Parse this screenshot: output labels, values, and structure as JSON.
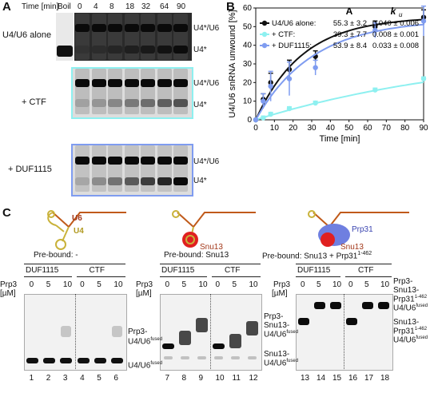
{
  "panel_a": {
    "label": "A",
    "time_label": "Time [min]",
    "lanes": [
      "Boil",
      "0",
      "4",
      "8",
      "18",
      "32",
      "64",
      "90"
    ],
    "rows": [
      {
        "name": "U4/U6 alone",
        "border": "#ffffff",
        "upper": "U4*/U6",
        "lower": "U4*"
      },
      {
        "name": "+ CTF",
        "border": "#8ef0f0",
        "upper": "U4*/U6",
        "lower": "U4*"
      },
      {
        "name": "+ DUF1115",
        "border": "#7f9cf0",
        "upper": "U4*/U6",
        "lower": "U4*"
      }
    ]
  },
  "panel_b": {
    "label": "B",
    "col_A": "A",
    "col_ku": "k",
    "col_ku_sub": "u",
    "legend": [
      {
        "name": "U4/U6 alone:",
        "A": "55.3 ± 3.2",
        "ku": "0.040 ± 0.006",
        "color": "#111111"
      },
      {
        "name": "+ CTF:",
        "A": "39.3 ± 7.7",
        "ku": "0.008 ± 0.001",
        "color": "#8ef0f0"
      },
      {
        "name": "+ DUF1115:",
        "A": "53.9 ± 8.4",
        "ku": "0.033 ± 0.008",
        "color": "#7f9cf0"
      }
    ]
  },
  "chart_data": {
    "type": "scatter",
    "xlabel": "Time [min]",
    "ylabel": "U4/U6 snRNA unwound [%]",
    "xlim": [
      0,
      90
    ],
    "ylim": [
      0,
      60
    ],
    "xticks": [
      0,
      10,
      20,
      30,
      40,
      50,
      60,
      70,
      80,
      90
    ],
    "yticks": [
      0,
      10,
      20,
      30,
      40,
      50,
      60
    ],
    "grid": false,
    "legend_position": "top",
    "series": [
      {
        "name": "U4/U6 alone",
        "color": "#111111",
        "A": 55.3,
        "ku": 0.04,
        "x": [
          0,
          4,
          8,
          18,
          32,
          64,
          90
        ],
        "y": [
          0,
          11,
          20,
          27,
          34,
          50,
          55
        ],
        "err": [
          0,
          3,
          5,
          5,
          3,
          3,
          4
        ]
      },
      {
        "name": "+ CTF",
        "color": "#8ef0f0",
        "A": 39.3,
        "ku": 0.008,
        "x": [
          0,
          4,
          8,
          18,
          32,
          64,
          90
        ],
        "y": [
          0,
          1,
          3,
          6,
          9,
          16,
          22
        ],
        "err": [
          0,
          1,
          1,
          1,
          1,
          1,
          1
        ]
      },
      {
        "name": "+ DUF1115",
        "color": "#7f9cf0",
        "A": 53.9,
        "ku": 0.033,
        "x": [
          0,
          4,
          8,
          18,
          32,
          64,
          90
        ],
        "y": [
          0,
          10,
          18,
          22,
          28,
          48,
          53
        ],
        "err": [
          0,
          4,
          8,
          9,
          4,
          4,
          8
        ]
      }
    ]
  },
  "panel_c": {
    "label": "C",
    "rna_labels": {
      "u6": "U6",
      "u4": "U4",
      "snu13": "Snu13",
      "prp31": "Prp31"
    },
    "gels": [
      {
        "prebound": "Pre-bound: -",
        "group1": "DUF1115",
        "group2": "CTF",
        "prp3": "Prp3",
        "prp3_unit": "[µM]",
        "conc": [
          "0",
          "5",
          "10",
          "0",
          "5",
          "10"
        ],
        "lanes": [
          "1",
          "2",
          "3",
          "4",
          "5",
          "6"
        ],
        "band_upper_a": "Prp3-",
        "band_upper_b": "U4/U6",
        "band_upper_sup": "fused",
        "band_lower": "U4/U6",
        "band_lower_sup": "fused"
      },
      {
        "prebound": "Pre-bound: Snu13",
        "group1": "DUF1115",
        "group2": "CTF",
        "prp3": "Prp3",
        "prp3_unit": "[µM]",
        "conc": [
          "0",
          "5",
          "10",
          "0",
          "5",
          "10"
        ],
        "lanes": [
          "7",
          "8",
          "9",
          "10",
          "11",
          "12"
        ],
        "band_upper_a": "Prp3-",
        "band_upper_b": "Snu13-",
        "band_upper_c": "U4/U6",
        "band_upper_sup": "fused",
        "band_lower_a": "Snu13-",
        "band_lower_b": "U4/U6",
        "band_lower_sup": "fused"
      },
      {
        "prebound": "Pre-bound: Snu13 + Prp31",
        "prebound_sup": "1-462",
        "group1": "DUF1115",
        "group2": "CTF",
        "prp3": "Prp3",
        "prp3_unit": "[µM]",
        "conc": [
          "0",
          "5",
          "10",
          "0",
          "5",
          "10"
        ],
        "lanes": [
          "13",
          "14",
          "15",
          "16",
          "17",
          "18"
        ],
        "band_upper_a": "Prp3-",
        "band_upper_b": "Snu13-",
        "band_upper_c": "Prp31",
        "band_upper_c_sup": "1-462",
        "band_upper_d": "U4/U6",
        "band_upper_sup": "fused",
        "band_lower_a": "Snu13-",
        "band_lower_b": "Prp31",
        "band_lower_b_sup": "1-462",
        "band_lower_c": "U4/U6",
        "band_lower_sup": "fused"
      }
    ]
  }
}
